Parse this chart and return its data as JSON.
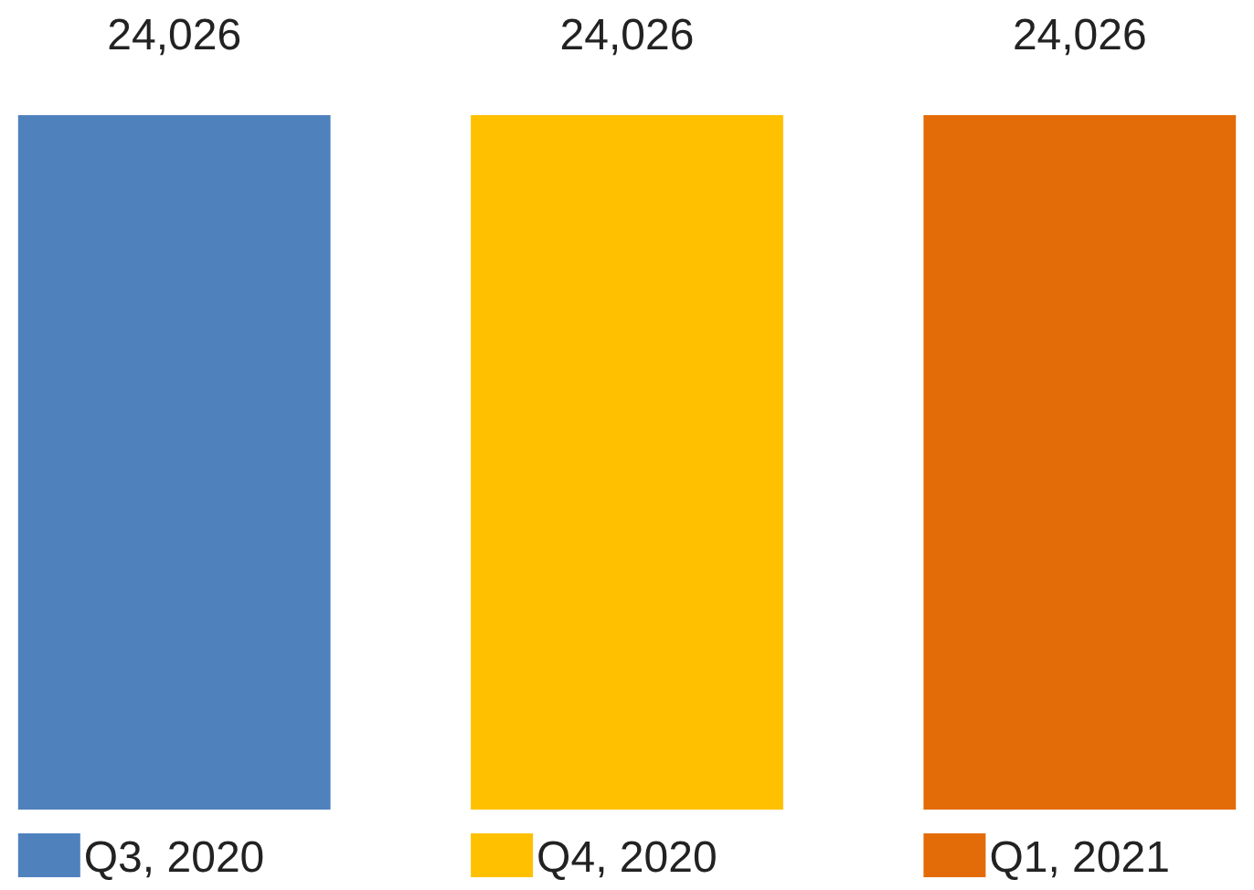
{
  "chart_data": {
    "type": "bar",
    "categories": [
      null
    ],
    "series": [
      {
        "name": "Q3, 2020",
        "color": "#4f81bd",
        "values": [
          24026
        ],
        "value_labels": [
          "24,026"
        ]
      },
      {
        "name": "Q4, 2020",
        "color": "#ffc000",
        "values": [
          24026
        ],
        "value_labels": [
          "24,026"
        ]
      },
      {
        "name": "Q1, 2021",
        "color": "#e36c09",
        "values": [
          24026
        ],
        "value_labels": [
          "24,026"
        ]
      }
    ],
    "legend": "bottom"
  }
}
